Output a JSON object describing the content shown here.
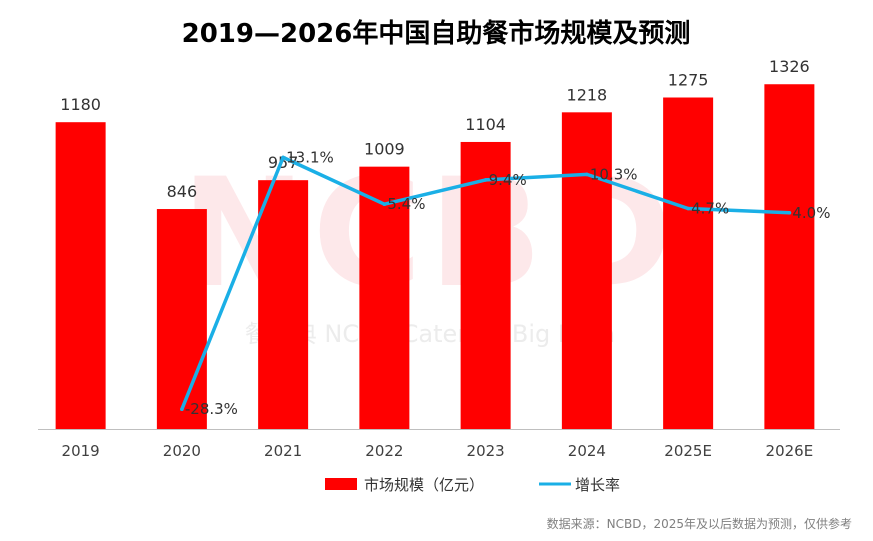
{
  "chart_data": {
    "type": "bar",
    "title": "2019—2026年中国自助餐市场规模及预测",
    "categories": [
      "2019",
      "2020",
      "2021",
      "2022",
      "2023",
      "2024",
      "2025E",
      "2026E"
    ],
    "series": [
      {
        "name": "市场规模（亿元）",
        "type": "bar",
        "values": [
          1180,
          846,
          957,
          1009,
          1104,
          1218,
          1275,
          1326
        ],
        "labels": [
          "1180",
          "846",
          "957",
          "1009",
          "1104",
          "1218",
          "1275",
          "1326"
        ],
        "color": "#ff0000"
      },
      {
        "name": "增长率",
        "type": "line",
        "values": [
          null,
          -28.3,
          13.1,
          5.4,
          9.4,
          10.3,
          4.7,
          4.0
        ],
        "labels": [
          "",
          "-28.3%",
          "13.1%",
          "5.4%",
          "9.4%",
          "10.3%",
          "4.7%",
          "4.0%"
        ],
        "color": "#1aafe6"
      }
    ],
    "ylim": [
      0,
      1400
    ],
    "y2lim": [
      -35,
      25
    ],
    "xlabel": "",
    "ylabel": "",
    "grid": false,
    "legend": "bottom-center",
    "source": "数据来源：NCBD，2025年及以后数据为预测，仅供参考",
    "watermark": {
      "big": "NCBD",
      "small": "餐宝典 NCBD Catering Big Data"
    }
  }
}
